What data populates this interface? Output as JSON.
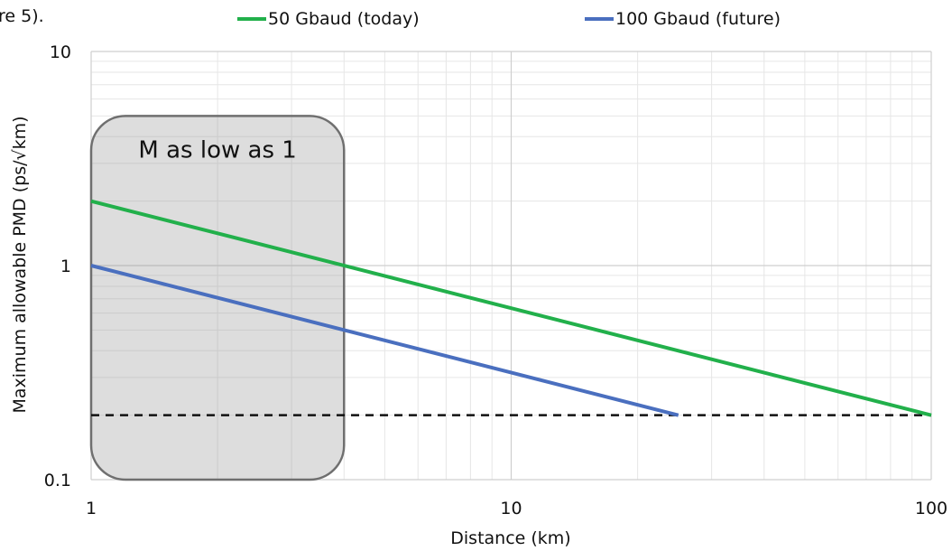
{
  "caption_fragment": "re 5).",
  "chart_data": {
    "type": "line",
    "xlabel": "Distance (km)",
    "ylabel": "Maximum allowable PMD (ps/√km)",
    "x_scale": "log",
    "y_scale": "log",
    "xlim": [
      1,
      100
    ],
    "ylim": [
      0.1,
      10
    ],
    "x_ticks": [
      "1",
      "10",
      "100"
    ],
    "y_ticks": [
      "0.1",
      "1",
      "10"
    ],
    "grid": true,
    "legend_position": "top",
    "series": [
      {
        "name": "50 Gbaud (today)",
        "color": "#22b04b",
        "x": [
          1,
          100
        ],
        "y": [
          2.0,
          0.2
        ]
      },
      {
        "name": "100 Gbaud (future)",
        "color": "#4a6fbf",
        "x": [
          1,
          25
        ],
        "y": [
          1.0,
          0.2
        ]
      }
    ],
    "reference_line": {
      "y": 0.2,
      "style": "dashed",
      "color": "#111111"
    },
    "annotation": {
      "text": "M as low as 1",
      "x_range": [
        1,
        4
      ],
      "y_range": [
        0.1,
        5
      ]
    }
  }
}
